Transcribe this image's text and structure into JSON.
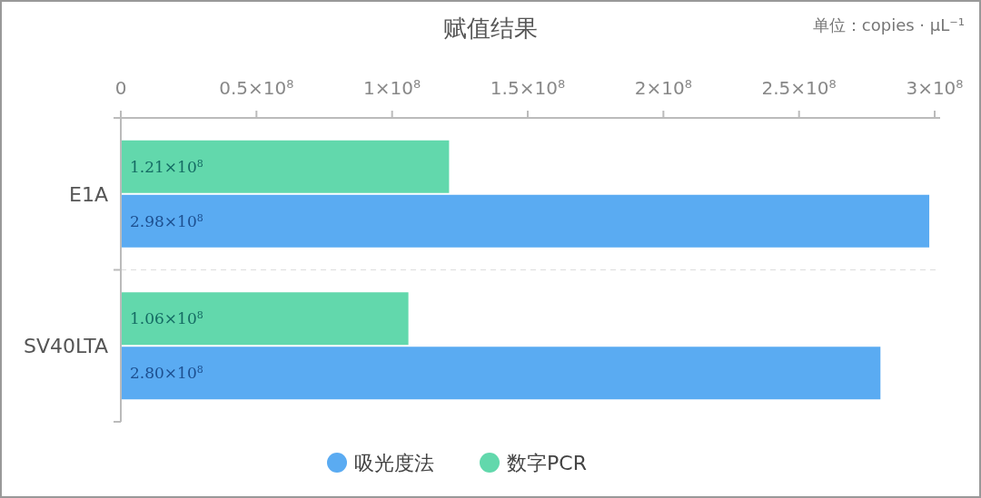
{
  "chart_data": {
    "type": "bar",
    "orientation": "horizontal",
    "title": "赋值结果",
    "annotations": [
      "单位：copies · μL⁻¹"
    ],
    "categories": [
      "E1A",
      "SV40LTA"
    ],
    "series": [
      {
        "name": "吸光度法",
        "color": "#5aabf2",
        "values": [
          298000000,
          280000000
        ],
        "value_labels": [
          "2.98×10$^{8}$",
          "2.80×10$^{8}$"
        ]
      },
      {
        "name": "数字PCR",
        "color": "#62d8ac",
        "values": [
          121000000,
          106000000
        ],
        "value_labels": [
          "1.21×10$^{8}$",
          "1.06×10$^{8}$"
        ]
      }
    ],
    "xlim": [
      0,
      302000000
    ],
    "xticks": [
      0,
      {
        "value": 50000000,
        "label": "0.5×10$^{8}$"
      },
      {
        "value": 100000000,
        "label": "1×10$^{8}$"
      },
      {
        "value": 150000000,
        "label": "1.5×10$^{8}$"
      },
      {
        "value": 200000000,
        "label": "2×10$^{8}$"
      },
      {
        "value": 250000000,
        "label": "2.5×10$^{8}$"
      },
      {
        "value": 300000000,
        "label": "3×10$^{8}$"
      }
    ],
    "grid": "y",
    "legend": "bottom"
  }
}
